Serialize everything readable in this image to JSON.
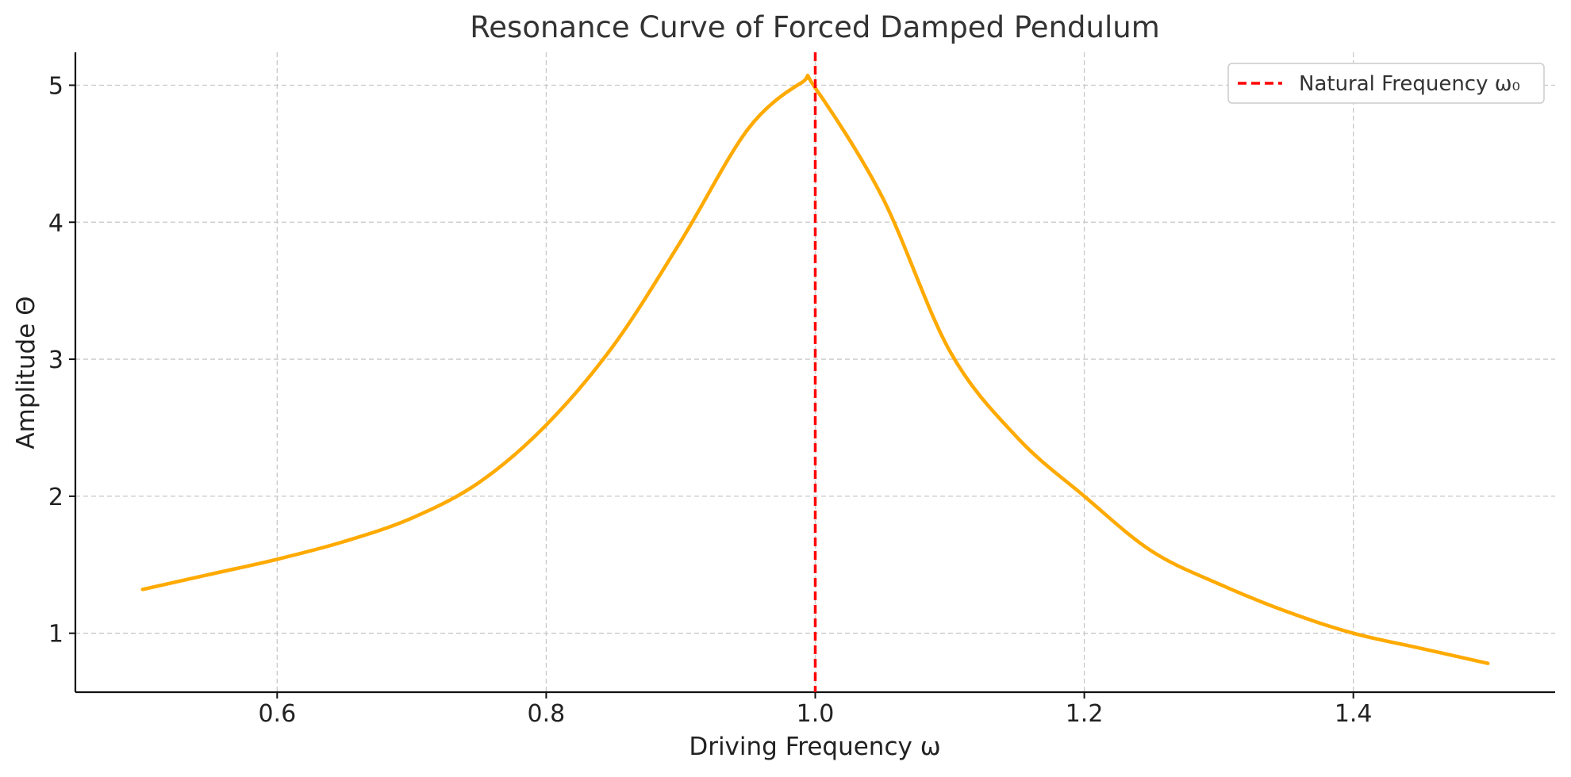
{
  "chart_data": {
    "type": "line",
    "title": "Resonance Curve of Forced Damped Pendulum",
    "xlabel": "Driving Frequency ω",
    "ylabel": "Amplitude Θ",
    "xlim": [
      0.45,
      1.55
    ],
    "ylim": [
      0.57,
      5.24
    ],
    "xticks": [
      0.6,
      0.8,
      1.0,
      1.2,
      1.4
    ],
    "xtick_labels": [
      "0.6",
      "0.8",
      "1.0",
      "1.2",
      "1.4"
    ],
    "yticks": [
      1,
      2,
      3,
      4,
      5
    ],
    "ytick_labels": [
      "1",
      "2",
      "3",
      "4",
      "5"
    ],
    "grid": true,
    "series": [
      {
        "color": "#FFAA00",
        "x": [
          0.5,
          0.55,
          0.6,
          0.65,
          0.7,
          0.75,
          0.8,
          0.85,
          0.9,
          0.95,
          0.99,
          1.0,
          1.05,
          1.1,
          1.15,
          1.2,
          1.25,
          1.3,
          1.35,
          1.4,
          1.45,
          1.5
        ],
        "y": [
          1.32,
          1.43,
          1.54,
          1.67,
          1.84,
          2.1,
          2.52,
          3.1,
          3.86,
          4.68,
          5.02,
          4.98,
          4.18,
          3.06,
          2.43,
          2.0,
          1.6,
          1.36,
          1.16,
          1.0,
          0.89,
          0.78
        ]
      }
    ],
    "reference_lines": [
      {
        "name": "Natural Frequency ω₀",
        "orientation": "vertical",
        "x": 1.0,
        "color": "#FF0000",
        "style": "dashed"
      }
    ],
    "legend": {
      "position": "top-right",
      "entries": [
        "Natural Frequency ω₀"
      ]
    }
  }
}
